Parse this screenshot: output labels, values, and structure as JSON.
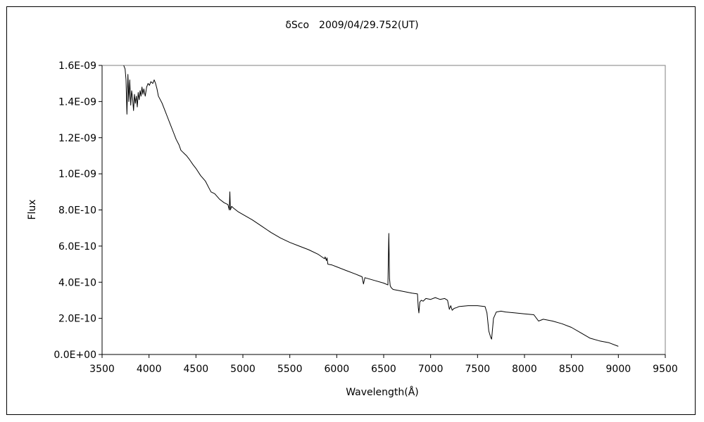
{
  "chart_data": {
    "type": "line",
    "title": "δSco　2009/04/29.752(UT)",
    "xlabel": "Wavelength(Å)",
    "ylabel": "Flux",
    "xlim": [
      3500,
      9500
    ],
    "ylim": [
      0,
      1.6e-09
    ],
    "grid": false,
    "legend": "none",
    "x_ticks": [
      3500,
      4000,
      4500,
      5000,
      5500,
      6000,
      6500,
      7000,
      7500,
      8000,
      8500,
      9000,
      9500
    ],
    "x_tick_labels": [
      "3500",
      "4000",
      "4500",
      "5000",
      "5500",
      "6000",
      "6500",
      "7000",
      "7500",
      "8000",
      "8500",
      "9000",
      "9500"
    ],
    "y_ticks": [
      0,
      2e-10,
      4e-10,
      6e-10,
      8e-10,
      1e-09,
      1.2e-09,
      1.4e-09,
      1.6e-09
    ],
    "y_tick_labels": [
      "0.0E+00",
      "2.0E-10",
      "4.0E-10",
      "6.0E-10",
      "8.0E-10",
      "1.0E-09",
      "1.2E-09",
      "1.4E-09",
      "1.6E-09"
    ],
    "series": [
      {
        "color": "#000000",
        "x": [
          3730,
          3745,
          3755,
          3765,
          3775,
          3785,
          3795,
          3805,
          3815,
          3825,
          3835,
          3845,
          3855,
          3865,
          3875,
          3885,
          3895,
          3905,
          3915,
          3925,
          3935,
          3945,
          3960,
          3975,
          3990,
          4005,
          4020,
          4040,
          4055,
          4070,
          4085,
          4100,
          4120,
          4140,
          4170,
          4200,
          4230,
          4260,
          4290,
          4320,
          4340,
          4360,
          4380,
          4400,
          4430,
          4470,
          4500,
          4550,
          4600,
          4640,
          4660,
          4700,
          4750,
          4800,
          4840,
          4855,
          4861,
          4867,
          4880,
          4900,
          4950,
          5000,
          5100,
          5200,
          5300,
          5400,
          5500,
          5600,
          5700,
          5800,
          5870,
          5876,
          5890,
          5896,
          5905,
          5950,
          6000,
          6100,
          6200,
          6270,
          6285,
          6300,
          6400,
          6500,
          6545,
          6555,
          6562,
          6570,
          6580,
          6600,
          6700,
          6800,
          6860,
          6868,
          6875,
          6885,
          6900,
          6920,
          6950,
          7000,
          7050,
          7100,
          7150,
          7180,
          7200,
          7215,
          7230,
          7250,
          7280,
          7300,
          7400,
          7500,
          7580,
          7600,
          7620,
          7640,
          7650,
          7670,
          7700,
          7750,
          7800,
          7900,
          8000,
          8100,
          8150,
          8200,
          8300,
          8400,
          8500,
          8600,
          8700,
          8800,
          8900,
          9000
        ],
        "y": [
          1.6e-09,
          1.58e-09,
          1.52e-09,
          1.33e-09,
          1.55e-09,
          1.4e-09,
          1.52e-09,
          1.38e-09,
          1.46e-09,
          1.42e-09,
          1.35e-09,
          1.44e-09,
          1.39e-09,
          1.43e-09,
          1.37e-09,
          1.45e-09,
          1.41e-09,
          1.46e-09,
          1.43e-09,
          1.48e-09,
          1.44e-09,
          1.47e-09,
          1.43e-09,
          1.48e-09,
          1.5e-09,
          1.49e-09,
          1.51e-09,
          1.5e-09,
          1.52e-09,
          1.5e-09,
          1.47e-09,
          1.43e-09,
          1.41e-09,
          1.39e-09,
          1.35e-09,
          1.31e-09,
          1.27e-09,
          1.23e-09,
          1.19e-09,
          1.16e-09,
          1.13e-09,
          1.12e-09,
          1.11e-09,
          1.1e-09,
          1.08e-09,
          1.05e-09,
          1.03e-09,
          9.9e-10,
          9.6e-10,
          9.2e-10,
          9e-10,
          8.9e-10,
          8.6e-10,
          8.4e-10,
          8.3e-10,
          8e-10,
          9e-10,
          8e-10,
          8.2e-10,
          8.1e-10,
          7.9e-10,
          7.75e-10,
          7.45e-10,
          7.1e-10,
          6.75e-10,
          6.45e-10,
          6.2e-10,
          6e-10,
          5.8e-10,
          5.55e-10,
          5.3e-10,
          5.4e-10,
          5.2e-10,
          5.35e-10,
          5e-10,
          4.95e-10,
          4.85e-10,
          4.65e-10,
          4.45e-10,
          4.3e-10,
          3.9e-10,
          4.25e-10,
          4.1e-10,
          3.95e-10,
          3.85e-10,
          6.7e-10,
          4.2e-10,
          3.8e-10,
          3.7e-10,
          3.6e-10,
          3.5e-10,
          3.4e-10,
          3.35e-10,
          2.6e-10,
          2.3e-10,
          2.9e-10,
          3e-10,
          2.95e-10,
          3.1e-10,
          3.05e-10,
          3.15e-10,
          3.05e-10,
          3.1e-10,
          3e-10,
          2.5e-10,
          2.7e-10,
          2.45e-10,
          2.55e-10,
          2.6e-10,
          2.65e-10,
          2.7e-10,
          2.7e-10,
          2.65e-10,
          2.3e-10,
          1.3e-10,
          9.5e-11,
          8.5e-11,
          2e-10,
          2.35e-10,
          2.4e-10,
          2.35e-10,
          2.3e-10,
          2.25e-10,
          2.2e-10,
          1.85e-10,
          1.95e-10,
          1.85e-10,
          1.7e-10,
          1.5e-10,
          1.2e-10,
          9e-11,
          7.5e-11,
          6.5e-11,
          4.5e-11
        ]
      }
    ]
  }
}
